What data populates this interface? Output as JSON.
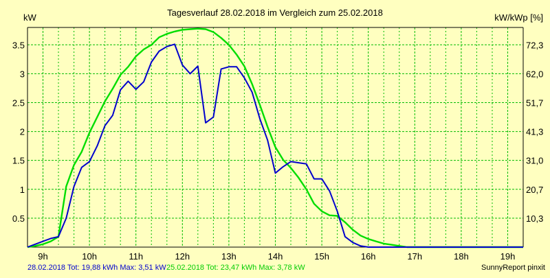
{
  "chart_data": {
    "type": "line",
    "title": "Tagesverlauf 28.02.2018 im Vergleich zum 25.02.2018",
    "ylabel_left": "kW",
    "ylabel_right": "kW/kWp [%]",
    "x_unit": "hour",
    "xlim": [
      8.667,
      19.333
    ],
    "ylim": [
      0,
      3.8
    ],
    "x_ticks": [
      {
        "value": 9,
        "label": "9h"
      },
      {
        "value": 10,
        "label": "10h"
      },
      {
        "value": 11,
        "label": "11h"
      },
      {
        "value": 12,
        "label": "12h"
      },
      {
        "value": 13,
        "label": "13h"
      },
      {
        "value": 14,
        "label": "14h"
      },
      {
        "value": 15,
        "label": "15h"
      },
      {
        "value": 16,
        "label": "16h"
      },
      {
        "value": 17,
        "label": "17h"
      },
      {
        "value": 18,
        "label": "18h"
      },
      {
        "value": 19,
        "label": "19h"
      }
    ],
    "x_minor_ticks": [
      8.667,
      9.333,
      9.667,
      10.333,
      10.667,
      11.333,
      11.667,
      12.333,
      12.667,
      13.333,
      13.667,
      14.333,
      14.667,
      15.333,
      15.667,
      16.333,
      16.667,
      17.333,
      17.667,
      18.333,
      18.667,
      19.333
    ],
    "y_ticks_left": [
      {
        "value": 0.5,
        "label": "0.5"
      },
      {
        "value": 1.0,
        "label": "1"
      },
      {
        "value": 1.5,
        "label": "1.5"
      },
      {
        "value": 2.0,
        "label": "2"
      },
      {
        "value": 2.5,
        "label": "2.5"
      },
      {
        "value": 3.0,
        "label": "3"
      },
      {
        "value": 3.5,
        "label": "3.5"
      }
    ],
    "y_ticks_right": [
      {
        "value": 0.5,
        "label": "10,3"
      },
      {
        "value": 1.0,
        "label": "20,7"
      },
      {
        "value": 1.5,
        "label": "31,0"
      },
      {
        "value": 2.0,
        "label": "41,3"
      },
      {
        "value": 2.5,
        "label": "51,7"
      },
      {
        "value": 3.0,
        "label": "62,0"
      },
      {
        "value": 3.5,
        "label": "72,3"
      }
    ],
    "grid": true,
    "series": [
      {
        "name": "28.02.2018",
        "color": "#0000cc",
        "x": [
          8.667,
          8.833,
          9.0,
          9.167,
          9.333,
          9.5,
          9.667,
          9.833,
          10.0,
          10.167,
          10.333,
          10.5,
          10.667,
          10.833,
          11.0,
          11.167,
          11.333,
          11.5,
          11.667,
          11.833,
          12.0,
          12.167,
          12.333,
          12.5,
          12.667,
          12.833,
          13.0,
          13.167,
          13.333,
          13.5,
          13.667,
          13.833,
          14.0,
          14.167,
          14.333,
          14.5,
          14.667,
          14.833,
          15.0,
          15.167,
          15.333,
          15.5,
          15.667,
          15.833,
          16.0,
          16.167,
          16.333,
          16.5,
          16.667,
          16.833,
          17.0,
          17.167,
          17.333,
          17.5,
          17.667,
          17.833,
          18.0,
          18.167,
          18.333,
          18.5,
          18.667,
          18.833,
          19.0,
          19.167,
          19.333
        ],
        "y": [
          0.0,
          0.05,
          0.1,
          0.15,
          0.18,
          0.5,
          1.05,
          1.38,
          1.48,
          1.75,
          2.1,
          2.28,
          2.72,
          2.87,
          2.73,
          2.86,
          3.2,
          3.39,
          3.47,
          3.51,
          3.15,
          3.0,
          3.13,
          2.15,
          2.25,
          3.08,
          3.12,
          3.12,
          2.93,
          2.68,
          2.22,
          1.85,
          1.28,
          1.39,
          1.48,
          1.46,
          1.44,
          1.18,
          1.18,
          0.97,
          0.62,
          0.18,
          0.08,
          0.02,
          0.0,
          0.0,
          0.0,
          0.0,
          0.0,
          0.0,
          0.0,
          0.0,
          0.0,
          0.0,
          0.0,
          0.0,
          0.0,
          0.0,
          0.0,
          0.0,
          0.0,
          0.0,
          0.0,
          0.0,
          0.0
        ],
        "summary": {
          "date": "28.02.2018",
          "tot": "Tot: 19,88 kWh",
          "max": "Max: 3,51 kW"
        }
      },
      {
        "name": "25.02.2018",
        "color": "#00dd00",
        "x": [
          8.667,
          8.833,
          9.0,
          9.167,
          9.333,
          9.5,
          9.667,
          9.833,
          10.0,
          10.167,
          10.333,
          10.5,
          10.667,
          10.833,
          11.0,
          11.167,
          11.333,
          11.5,
          11.667,
          11.833,
          12.0,
          12.167,
          12.333,
          12.5,
          12.667,
          12.833,
          13.0,
          13.167,
          13.333,
          13.5,
          13.667,
          13.833,
          14.0,
          14.167,
          14.333,
          14.5,
          14.667,
          14.833,
          15.0,
          15.167,
          15.333,
          15.5,
          15.667,
          15.833,
          16.0,
          16.167,
          16.333,
          16.5,
          16.667,
          16.833,
          17.0,
          17.167,
          17.333,
          17.5,
          17.667,
          17.833,
          18.0,
          18.167,
          18.333,
          18.5,
          18.667,
          18.833,
          19.0,
          19.167,
          19.333
        ],
        "y": [
          0.0,
          0.02,
          0.05,
          0.1,
          0.18,
          1.05,
          1.42,
          1.65,
          1.98,
          2.25,
          2.52,
          2.74,
          2.98,
          3.12,
          3.3,
          3.42,
          3.5,
          3.63,
          3.69,
          3.73,
          3.76,
          3.77,
          3.78,
          3.77,
          3.72,
          3.62,
          3.5,
          3.33,
          3.13,
          2.82,
          2.46,
          2.08,
          1.73,
          1.51,
          1.37,
          1.2,
          1.0,
          0.75,
          0.62,
          0.55,
          0.54,
          0.43,
          0.3,
          0.2,
          0.14,
          0.1,
          0.06,
          0.04,
          0.02,
          0.0,
          0.0,
          0.0,
          0.0,
          0.0,
          0.0,
          0.0,
          0.0,
          0.0,
          0.0,
          0.0,
          0.0,
          0.0,
          0.0,
          0.0,
          0.0
        ],
        "summary": {
          "date": "25.02.2018",
          "tot": "Tot: 23,47 kWh",
          "max": "Max: 3,78 kW"
        }
      }
    ],
    "footer": {
      "blue_text": "28.02.2018 Tot: 19,88 kWh Max: 3,51 kW",
      "green_text": "25.02.2018 Tot: 23,47 kWh Max: 3,78 kW",
      "credit": "SunnyReport pinxit"
    },
    "colors": {
      "background": "#ffffc0",
      "grid": "#00bb00",
      "axis": "#000000"
    }
  }
}
